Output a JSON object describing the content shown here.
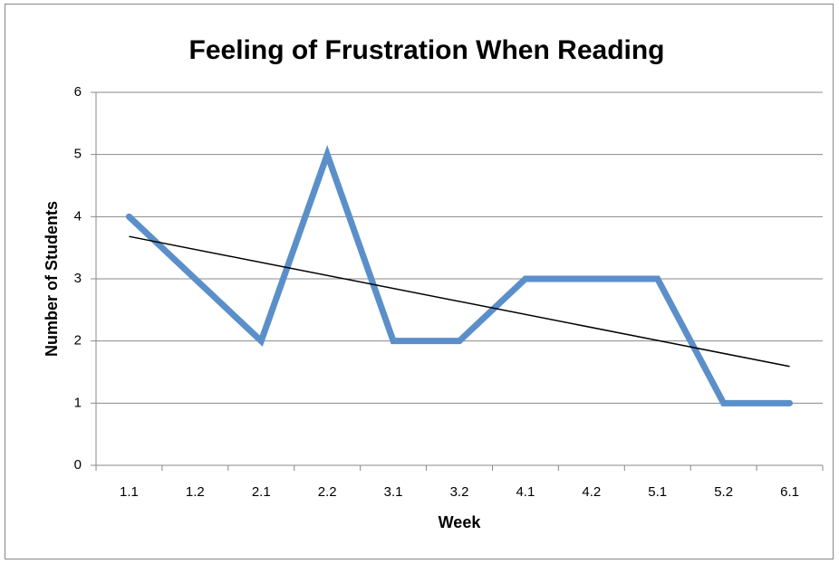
{
  "chart_data": {
    "type": "line",
    "title": "Feeling of Frustration When Reading",
    "x_label": "Week",
    "y_label": "Number of Students",
    "categories": [
      "1.1",
      "1.2",
      "2.1",
      "2.2",
      "3.1",
      "3.2",
      "4.1",
      "4.2",
      "5.1",
      "5.2",
      "6.1"
    ],
    "values": [
      4,
      3,
      2,
      5,
      2,
      2,
      3,
      3,
      3,
      1,
      1
    ],
    "color": "#5b8fc9",
    "trendline": "linear",
    "trendline_color": "#000000",
    "ylim": [
      0,
      6
    ],
    "yticks": [
      0,
      1,
      2,
      3,
      4,
      5,
      6
    ],
    "grid": true
  }
}
